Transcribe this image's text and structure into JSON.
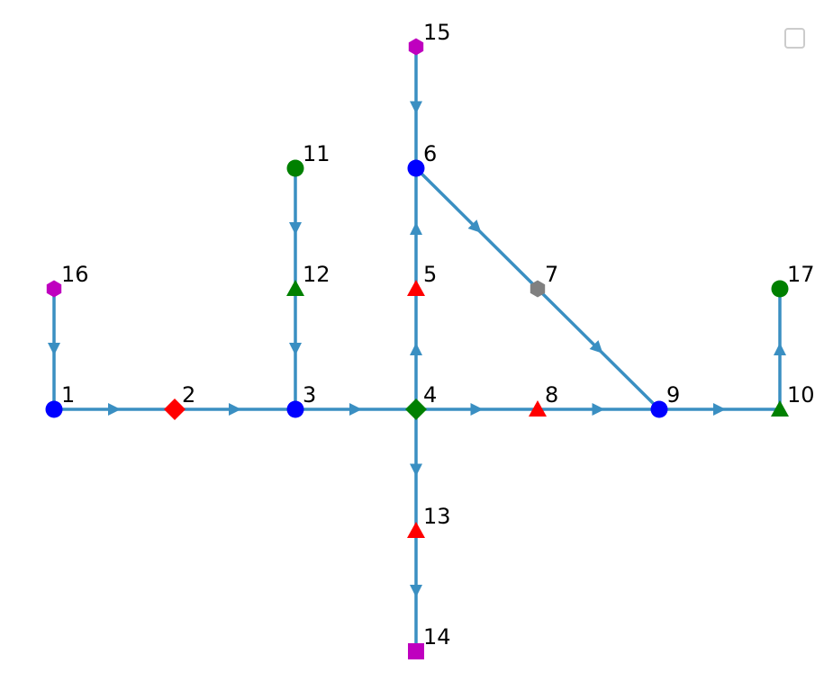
{
  "diagram": {
    "type": "directed-graph",
    "edge_color": "#3a8fc2",
    "marker_colors": {
      "blue": "#0000ff",
      "red": "#ff0000",
      "green": "#008000",
      "magenta": "#bf00bf",
      "gray": "#808080"
    },
    "nodes": [
      {
        "id": "1",
        "label": "1",
        "shape": "circle",
        "color": "blue"
      },
      {
        "id": "2",
        "label": "2",
        "shape": "diamond",
        "color": "red"
      },
      {
        "id": "3",
        "label": "3",
        "shape": "circle",
        "color": "blue"
      },
      {
        "id": "4",
        "label": "4",
        "shape": "diamond",
        "color": "green"
      },
      {
        "id": "5",
        "label": "5",
        "shape": "triangle",
        "color": "red"
      },
      {
        "id": "6",
        "label": "6",
        "shape": "circle",
        "color": "blue"
      },
      {
        "id": "7",
        "label": "7",
        "shape": "hexagon",
        "color": "gray"
      },
      {
        "id": "8",
        "label": "8",
        "shape": "triangle",
        "color": "red"
      },
      {
        "id": "9",
        "label": "9",
        "shape": "circle",
        "color": "blue"
      },
      {
        "id": "10",
        "label": "10",
        "shape": "triangle",
        "color": "green"
      },
      {
        "id": "11",
        "label": "11",
        "shape": "circle",
        "color": "green"
      },
      {
        "id": "12",
        "label": "12",
        "shape": "triangle",
        "color": "green"
      },
      {
        "id": "13",
        "label": "13",
        "shape": "triangle",
        "color": "red"
      },
      {
        "id": "14",
        "label": "14",
        "shape": "square",
        "color": "magenta"
      },
      {
        "id": "15",
        "label": "15",
        "shape": "hexagon",
        "color": "magenta"
      },
      {
        "id": "16",
        "label": "16",
        "shape": "hexagon",
        "color": "magenta"
      },
      {
        "id": "17",
        "label": "17",
        "shape": "circle",
        "color": "green"
      }
    ],
    "edges": [
      {
        "from": "1",
        "to": "2"
      },
      {
        "from": "2",
        "to": "3"
      },
      {
        "from": "3",
        "to": "4"
      },
      {
        "from": "4",
        "to": "8"
      },
      {
        "from": "8",
        "to": "9"
      },
      {
        "from": "9",
        "to": "10"
      },
      {
        "from": "4",
        "to": "5"
      },
      {
        "from": "5",
        "to": "6"
      },
      {
        "from": "6",
        "to": "7"
      },
      {
        "from": "7",
        "to": "9"
      },
      {
        "from": "15",
        "to": "6"
      },
      {
        "from": "11",
        "to": "12"
      },
      {
        "from": "12",
        "to": "3"
      },
      {
        "from": "16",
        "to": "1"
      },
      {
        "from": "4",
        "to": "13"
      },
      {
        "from": "13",
        "to": "14"
      },
      {
        "from": "10",
        "to": "17"
      }
    ],
    "legend": {
      "placement": "top-right",
      "entries": []
    }
  }
}
